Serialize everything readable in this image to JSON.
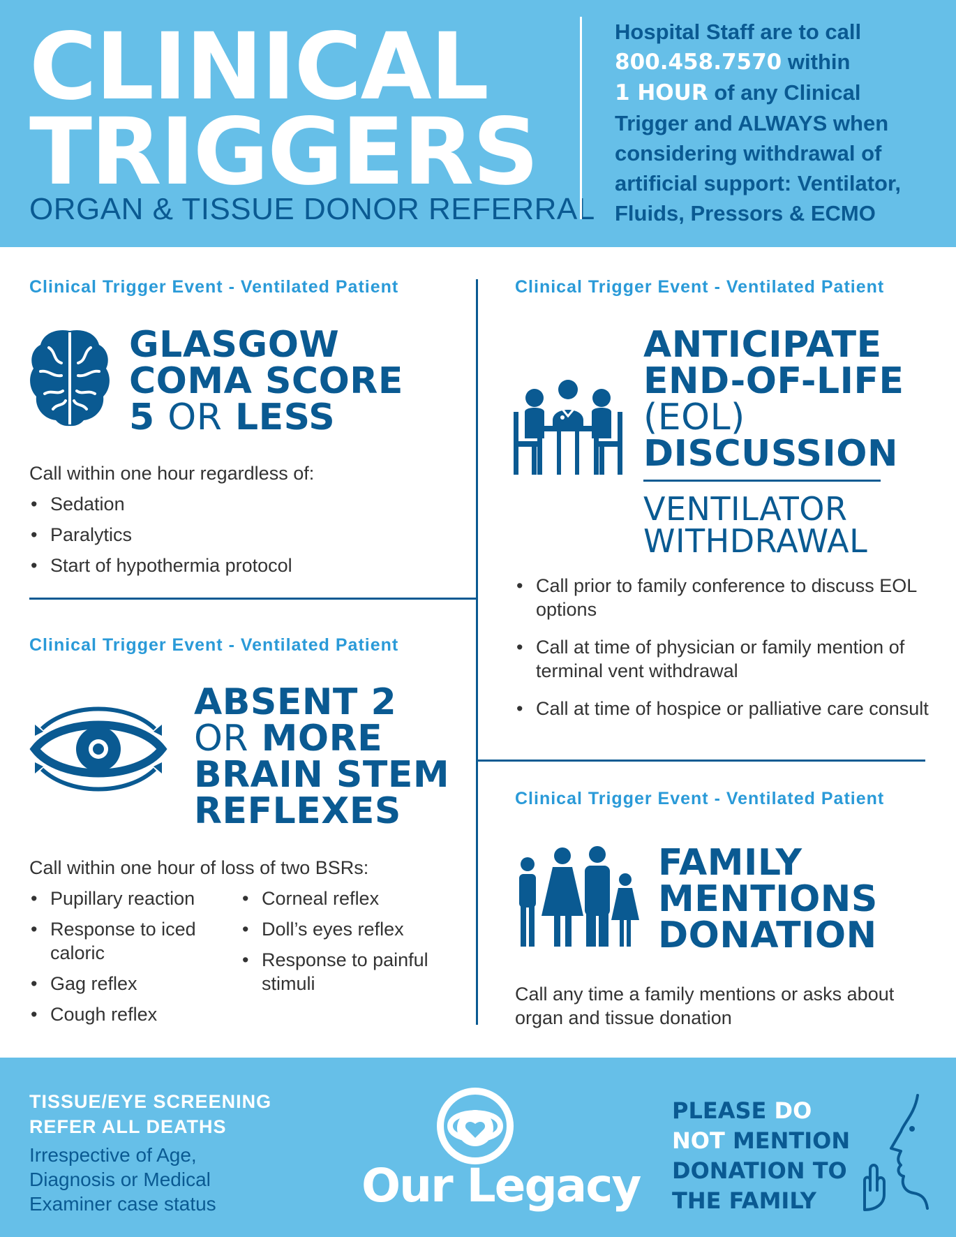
{
  "header": {
    "title_line1": "CLINICAL",
    "title_line2": "TRIGGERS",
    "subtitle": "ORGAN & TISSUE DONOR REFERRAL",
    "note": {
      "line1": "Hospital Staff are to call",
      "phone": "800.458.7570",
      "line2b": "within",
      "hour": "1 HOUR",
      "line3b": "of any Clinical",
      "line4": "Trigger and ALWAYS when",
      "line5": "considering withdrawal of",
      "line6": "artificial support: Ventilator,",
      "line7": "Fluids, Pressors & ECMO"
    }
  },
  "sections": {
    "glasgow": {
      "tag": "Clinical Trigger Event - Ventilated Patient",
      "icon": "brain-icon",
      "heading_line1": "GLASGOW",
      "heading_line2": "COMA SCORE",
      "heading_line3a": "5",
      "heading_line3b": "OR",
      "heading_line3c": "LESS",
      "intro": "Call within one hour regardless of:",
      "bullets": [
        "Sedation",
        "Paralytics",
        "Start of hypothermia protocol"
      ]
    },
    "brainstem": {
      "tag": "Clinical Trigger Event - Ventilated Patient",
      "icon": "eye-icon",
      "heading_line1": "ABSENT 2",
      "heading_line2a": "OR",
      "heading_line2b": "MORE",
      "heading_line3": "BRAIN STEM",
      "heading_line4": "REFLEXES",
      "intro": "Call within one hour of loss of two BSRs:",
      "bullets_left": [
        "Pupillary reaction",
        "Response to iced caloric",
        "Gag reflex",
        "Cough reflex"
      ],
      "bullets_right": [
        "Corneal reflex",
        "Doll’s eyes reflex",
        "Response to painful stimuli"
      ]
    },
    "eol": {
      "tag": "Clinical Trigger Event - Ventilated Patient",
      "icon": "family-conference-icon",
      "heading_line1": "ANTICIPATE",
      "heading_line2": "END-OF-LIFE",
      "heading_line3": "(EOL)",
      "heading_line4": "DISCUSSION",
      "sub_line1": "VENTILATOR",
      "sub_line2": "WITHDRAWAL",
      "bullets": [
        "Call prior to family conference to discuss EOL options",
        "Call at time of physician or family mention of terminal vent withdrawal",
        "Call at time of hospice or palliative care consult"
      ]
    },
    "family": {
      "tag": "Clinical Trigger Event - Ventilated Patient",
      "icon": "family-icon",
      "heading_line1": "FAMILY",
      "heading_line2": "MENTIONS",
      "heading_line3": "DONATION",
      "body": "Call any time a family mentions or asks about organ and tissue donation"
    }
  },
  "footer": {
    "left_line1": "TISSUE/EYE SCREENING",
    "left_line2": "REFER ALL DEATHS",
    "left_line3": "Irrespective of Age, Diagnosis or Medical Examiner case status",
    "logo_text": "Our Legacy",
    "warn": {
      "l1a": "PLEASE",
      "l1b": "DO",
      "l2a": "NOT",
      "l2b": "MENTION",
      "l3": "DONATION TO",
      "l4": "THE FAMILY"
    },
    "hush_icon": "shush-face-icon"
  },
  "colors": {
    "light_blue": "#66bfe8",
    "navy": "#0a5a92",
    "accent_blue": "#2a9ad8",
    "text": "#333333"
  }
}
